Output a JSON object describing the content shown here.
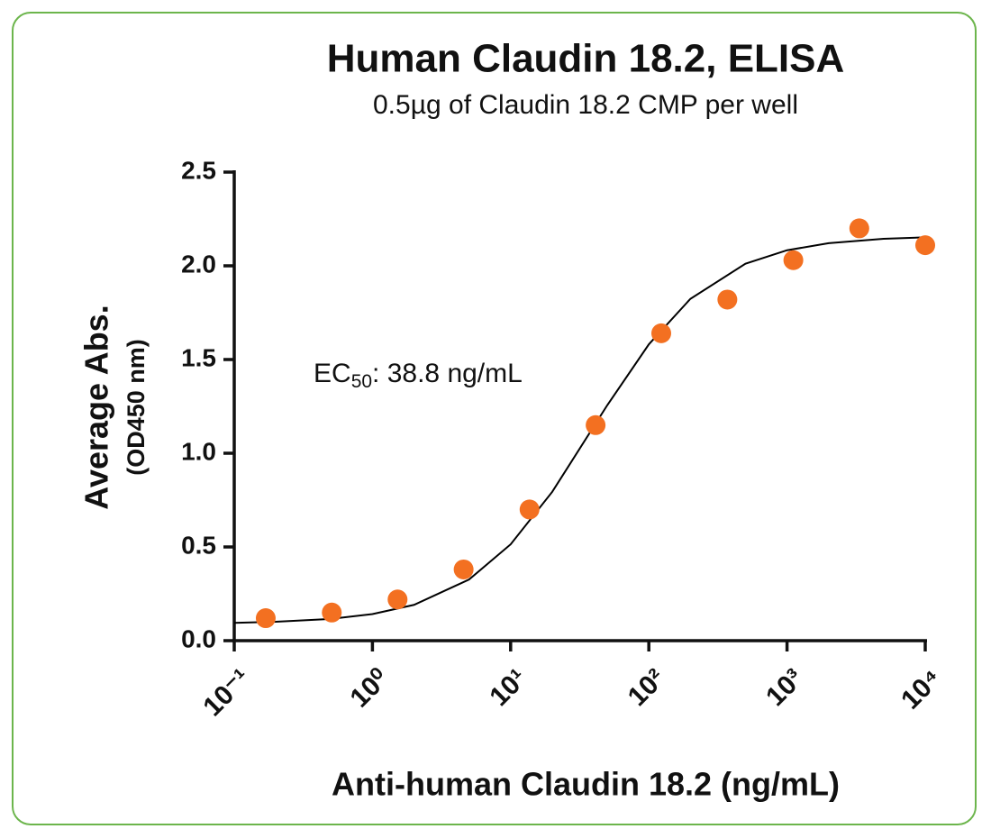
{
  "chart_data": {
    "type": "scatter",
    "title": "Human Claudin 18.2, ELISA",
    "subtitle": "0.5µg of Claudin 18.2 CMP per well",
    "xlabel": "Anti-human Claudin 18.2 (ng/mL)",
    "ylabel": "Average Abs.",
    "ylabel_sub": "(OD450 nm)",
    "annotation": {
      "text": "EC",
      "sub": "50",
      "rest": ": 38.8 ng/mL"
    },
    "xscale": "log",
    "xlim": [
      0.1,
      10000
    ],
    "xticks": [
      {
        "value": 0.1,
        "label": "10⁻¹"
      },
      {
        "value": 1,
        "label": "10⁰"
      },
      {
        "value": 10,
        "label": "10¹"
      },
      {
        "value": 100,
        "label": "10²"
      },
      {
        "value": 1000,
        "label": "10³"
      },
      {
        "value": 10000,
        "label": "10⁴"
      }
    ],
    "ylim": [
      0,
      2.5
    ],
    "yticks": [
      {
        "value": 0,
        "label": "0.0"
      },
      0.5,
      {
        "value": 1,
        "label": "1.0"
      },
      1.5,
      {
        "value": 2,
        "label": "2.0"
      },
      2.5
    ],
    "series": [
      {
        "type": "line",
        "color": "#000000",
        "x": [
          0.1,
          0.2,
          0.5,
          1,
          2,
          5,
          10,
          20,
          50,
          100,
          200,
          500,
          1000,
          2000,
          5000,
          10000
        ],
        "values": [
          0.095,
          0.101,
          0.116,
          0.142,
          0.191,
          0.326,
          0.514,
          0.794,
          1.256,
          1.581,
          1.824,
          2.011,
          2.083,
          2.121,
          2.144,
          2.152
        ]
      },
      {
        "type": "scatter",
        "color": "#f37021",
        "x": [
          0.169,
          0.508,
          1.52,
          4.57,
          13.7,
          41.2,
          123,
          370,
          1111,
          3333,
          10000
        ],
        "values": [
          0.12,
          0.15,
          0.22,
          0.38,
          0.7,
          1.15,
          1.64,
          1.82,
          2.03,
          2.2,
          2.11
        ]
      }
    ]
  }
}
